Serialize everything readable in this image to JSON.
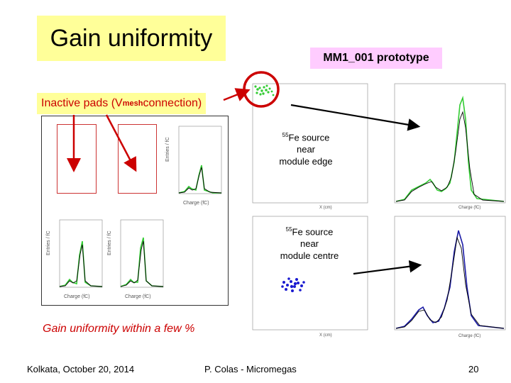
{
  "slide": {
    "title": "Gain uniformity",
    "prototype_label": "MM1_001 prototype",
    "inactive_pads": {
      "prefix": "Inactive pads (V",
      "subscript": "mesh",
      "suffix": " connection)"
    },
    "callout_edge": {
      "sup": "55",
      "line1": "Fe source",
      "line2": "near",
      "line3": "module edge"
    },
    "callout_centre": {
      "sup": "55",
      "line1": "Fe source",
      "line2": "near",
      "line3": "module centre"
    },
    "gain_note": "Gain uniformity within a few %",
    "footer": {
      "left": "Kolkata, October 20, 2014",
      "center": "P. Colas - Micromegas",
      "page": "20"
    }
  },
  "colors": {
    "title_bg": "#ffff99",
    "prototype_bg": "#ffccff",
    "accent_red": "#cc0000",
    "hist_green": "#33cc33",
    "hist_blue": "#1a1aa6"
  },
  "plots": {
    "small_hist_axis": {
      "ylabel": "Entries / fC",
      "xlabel": "Charge (fC)"
    },
    "right_hist_axis": {
      "ylabel": "Entries / fC",
      "xlabel": "Charge (fC)"
    },
    "scatter_axis": {
      "ylabel": "Y (cm)",
      "xlabel": "X (cm)"
    }
  }
}
